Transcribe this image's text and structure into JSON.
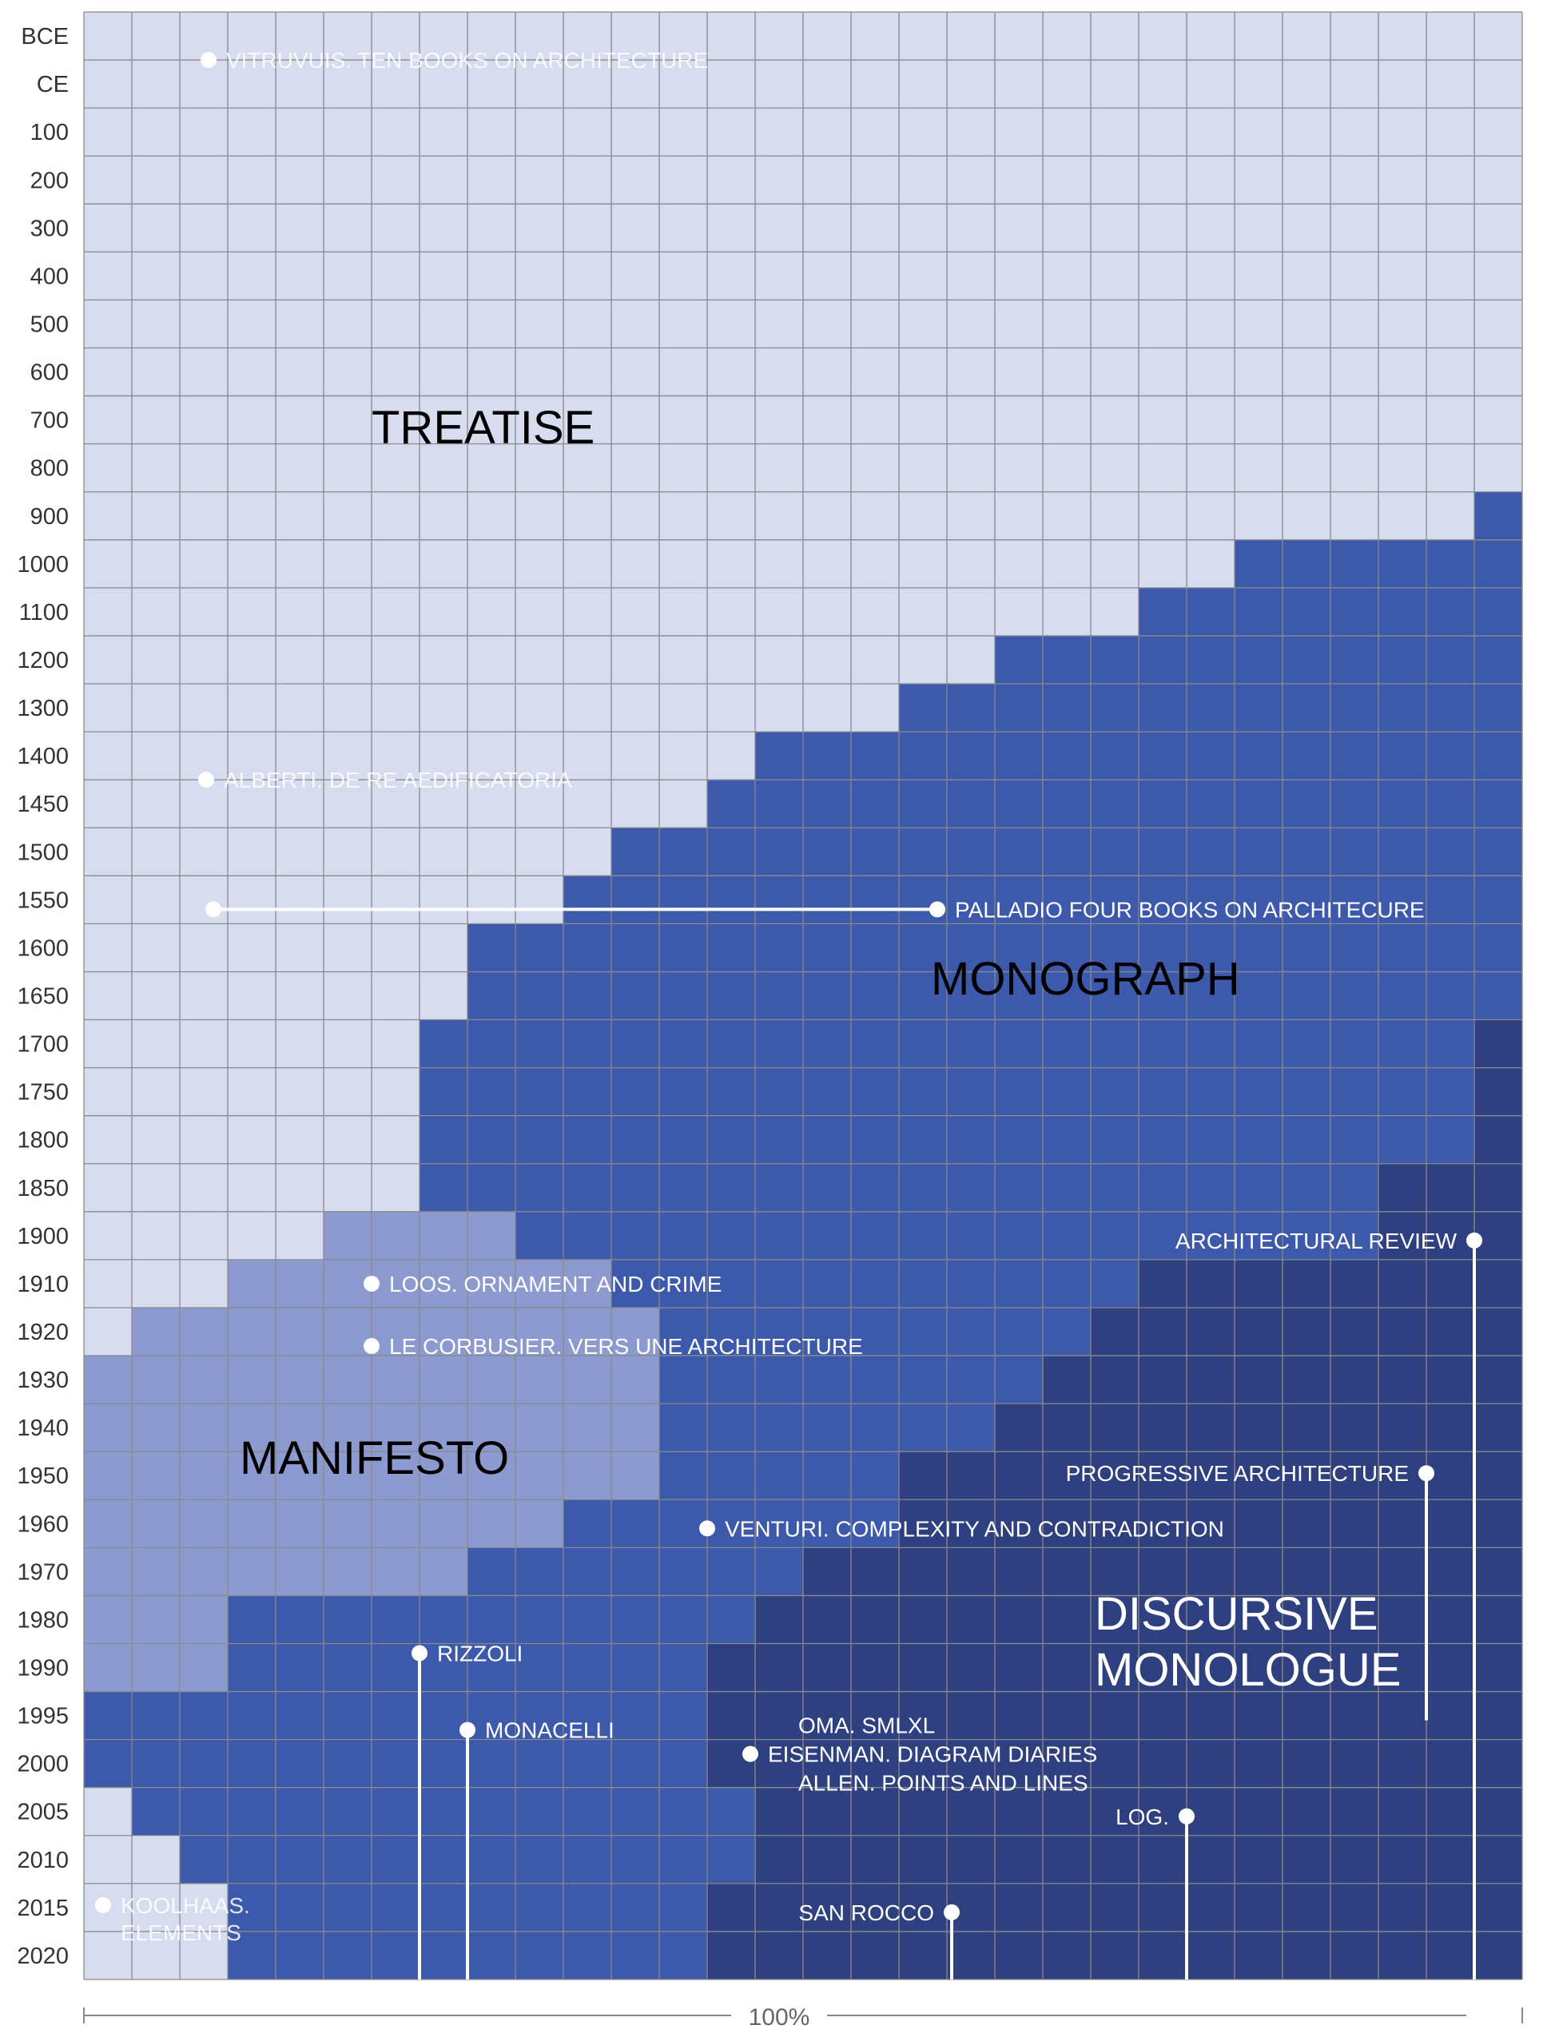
{
  "chart_data": {
    "type": "area",
    "row_labels": [
      "BCE",
      "CE",
      "100",
      "200",
      "300",
      "400",
      "500",
      "600",
      "700",
      "800",
      "900",
      "1000",
      "1100",
      "1200",
      "1300",
      "1400",
      "1450",
      "1500",
      "1550",
      "1600",
      "1650",
      "1700",
      "1750",
      "1800",
      "1850",
      "1900",
      "1910",
      "1920",
      "1930",
      "1940",
      "1950",
      "1960",
      "1970",
      "1980",
      "1990",
      "1995",
      "2000",
      "2005",
      "2010",
      "2015",
      "2020"
    ],
    "columns": 30,
    "x_axis_label": "100%",
    "colors": {
      "treatise": "#d8dcef",
      "manifesto": "#8c9ad0",
      "monograph": "#3d59ab",
      "discursive": "#2f4080",
      "grid": "#8a8a8a",
      "axis": "#888888"
    },
    "regions": [
      {
        "key": "treatise",
        "label": "TREATISE"
      },
      {
        "key": "monograph",
        "label": "MONOGRAPH"
      },
      {
        "key": "manifesto",
        "label": "MANIFESTO"
      },
      {
        "key": "discursive",
        "label": "DISCURSIVE",
        "label2": "MONOLOGUE"
      }
    ],
    "boundaries_note": "Per row: columns [0,a) treatise, [a,b) manifesto, [b,c) monograph, [c,30) discursive",
    "bands": [
      {
        "rows": [
          0,
          10
        ],
        "a": 30,
        "b": 30,
        "c": 30
      },
      {
        "rows": [
          10,
          11
        ],
        "a": 29,
        "b": 29,
        "c": 30
      },
      {
        "rows": [
          11,
          12
        ],
        "a": 24,
        "b": 24,
        "c": 30
      },
      {
        "rows": [
          12,
          13
        ],
        "a": 22,
        "b": 22,
        "c": 30
      },
      {
        "rows": [
          13,
          14
        ],
        "a": 19,
        "b": 19,
        "c": 30
      },
      {
        "rows": [
          14,
          15
        ],
        "a": 17,
        "b": 17,
        "c": 30
      },
      {
        "rows": [
          15,
          16
        ],
        "a": 14,
        "b": 14,
        "c": 30
      },
      {
        "rows": [
          16,
          17
        ],
        "a": 13,
        "b": 13,
        "c": 30
      },
      {
        "rows": [
          17,
          18
        ],
        "a": 11,
        "b": 11,
        "c": 30
      },
      {
        "rows": [
          18,
          19
        ],
        "a": 10,
        "b": 10,
        "c": 30
      },
      {
        "rows": [
          19,
          21
        ],
        "a": 8,
        "b": 8,
        "c": 30
      },
      {
        "rows": [
          21,
          22
        ],
        "a": 7,
        "b": 7,
        "c": 29
      },
      {
        "rows": [
          22,
          24
        ],
        "a": 7,
        "b": 7,
        "c": 29
      },
      {
        "rows": [
          24,
          25
        ],
        "a": 7,
        "b": 7,
        "c": 27
      },
      {
        "rows": [
          25,
          26
        ],
        "a": 5,
        "b": 9,
        "c": 27
      },
      {
        "rows": [
          26,
          27
        ],
        "a": 3,
        "b": 11,
        "c": 22
      },
      {
        "rows": [
          27,
          28
        ],
        "a": 1,
        "b": 12,
        "c": 21
      },
      {
        "rows": [
          28,
          29
        ],
        "a": 0,
        "b": 12,
        "c": 20
      },
      {
        "rows": [
          29,
          30
        ],
        "a": 0,
        "b": 12,
        "c": 19
      },
      {
        "rows": [
          30,
          31
        ],
        "a": 0,
        "b": 12,
        "c": 17
      },
      {
        "rows": [
          31,
          32
        ],
        "a": 0,
        "b": 10,
        "c": 17
      },
      {
        "rows": [
          32,
          33
        ],
        "a": 0,
        "b": 8,
        "c": 15
      },
      {
        "rows": [
          33,
          34
        ],
        "a": 0,
        "b": 3,
        "c": 14
      },
      {
        "rows": [
          34,
          35
        ],
        "a": 0,
        "b": 3,
        "c": 13
      },
      {
        "rows": [
          35,
          37
        ],
        "a": 0,
        "b": 0,
        "c": 13
      },
      {
        "rows": [
          37,
          38
        ],
        "a": 1,
        "b": 1,
        "c": 14
      },
      {
        "rows": [
          38,
          39
        ],
        "a": 2,
        "b": 2,
        "c": 14
      },
      {
        "rows": [
          39,
          41
        ],
        "a": 3,
        "b": 3,
        "c": 13
      }
    ],
    "annotations": [
      {
        "text": "VITRUVUIS. TEN BOOKS ON ARCHITECTURE",
        "row": 1,
        "col": 2.6,
        "faint": true,
        "stem_to_bottom": false
      },
      {
        "text": "ALBERTI. DE RE AEDIFICATORIA",
        "row": 16,
        "col": 2.55,
        "faint": true,
        "stem_to_bottom": false
      },
      {
        "text": "PALLADIO FOUR BOOKS ON ARCHITECURE",
        "row": 18.7,
        "col": 17.8,
        "stem_from_col": 2.7
      },
      {
        "text": "LOOS. ORNAMENT AND CRIME",
        "row": 26.5,
        "col": 6.0
      },
      {
        "text": "LE CORBUSIER. VERS UNE ARCHITECTURE",
        "row": 27.8,
        "col": 6.0
      },
      {
        "text": "VENTURI. COMPLEXITY AND CONTRADICTION",
        "row": 31.6,
        "col": 13.0
      },
      {
        "text": "RIZZOLI",
        "row": 34.2,
        "col": 7.0,
        "stem_to_bottom": true
      },
      {
        "text": "MONACELLI",
        "row": 35.8,
        "col": 8.0,
        "stem_to_bottom": true
      },
      {
        "text": "OMA. SMLXL",
        "row": 35.7,
        "col": 14.9,
        "no_dot": true
      },
      {
        "text": "EISENMAN. DIAGRAM DIARIES",
        "row": 36.3,
        "col": 13.9,
        "dot": true
      },
      {
        "text": "ALLEN. POINTS AND LINES",
        "row": 36.9,
        "col": 14.9,
        "no_dot": true
      },
      {
        "text": "ARCHITECTURAL REVIEW",
        "row": 25.6,
        "col": 29.0,
        "label_left": true,
        "stem_to_bottom": true
      },
      {
        "text": "PROGRESSIVE ARCHITECTURE",
        "row": 30.45,
        "col": 28.0,
        "label_left": true,
        "stem_end_row": 35.6
      },
      {
        "text": "LOG.",
        "row": 37.6,
        "col": 23.0,
        "label_left": true,
        "stem_to_bottom": true
      },
      {
        "text": "SAN ROCCO",
        "row": 39.6,
        "col": 18.1,
        "label_left": true,
        "stem_to_bottom": true
      },
      {
        "text": "KOOLHAAS.",
        "text2": "ELEMENTS",
        "row": 39.45,
        "col": 0.4,
        "faint": true
      }
    ]
  }
}
